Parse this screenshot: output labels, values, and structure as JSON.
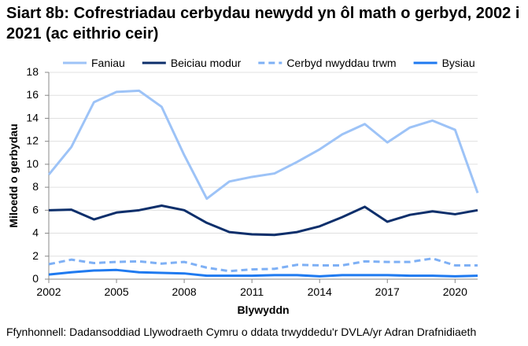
{
  "chart_data": {
    "type": "line",
    "title": "Siart 8b: Cofrestriadau cerbydau newydd yn ôl math o gerbyd, 2002 i 2021 (ac eithrio ceir)",
    "xlabel": "Blywyddn",
    "ylabel": "Miloedd o gerbydau",
    "source": "Ffynhonnell: Dadansoddiad Llywodraeth Cymru o ddata trwyddedu'r DVLA/yr Adran Drafnidiaeth",
    "ylim": [
      0,
      18
    ],
    "yticks": [
      0,
      2,
      4,
      6,
      8,
      10,
      12,
      14,
      16,
      18
    ],
    "xlim": [
      2002,
      2021
    ],
    "xticks": [
      2002,
      2005,
      2008,
      2011,
      2014,
      2017,
      2020
    ],
    "x": [
      2002,
      2003,
      2004,
      2005,
      2006,
      2007,
      2008,
      2009,
      2010,
      2011,
      2012,
      2013,
      2014,
      2015,
      2016,
      2017,
      2018,
      2019,
      2020,
      2021
    ],
    "grid": true,
    "legend": "top",
    "series": [
      {
        "name": "Faniau",
        "color": "#9dc3f7",
        "dash": false,
        "values": [
          9.1,
          11.5,
          15.4,
          16.3,
          16.4,
          15.0,
          10.8,
          7.0,
          8.5,
          8.9,
          9.2,
          10.2,
          11.3,
          12.6,
          13.5,
          11.9,
          13.2,
          13.8,
          13.0,
          7.5
        ]
      },
      {
        "name": "Beiciau modur",
        "color": "#0d2f6b",
        "dash": false,
        "values": [
          6.0,
          6.05,
          5.2,
          5.8,
          6.0,
          6.4,
          6.0,
          4.9,
          4.1,
          3.9,
          3.85,
          4.1,
          4.6,
          5.4,
          6.3,
          5.0,
          5.6,
          5.9,
          5.65,
          6.0
        ]
      },
      {
        "name": "Cerbyd nwyddau trwm",
        "color": "#7eb0f5",
        "dash": true,
        "values": [
          1.3,
          1.7,
          1.4,
          1.5,
          1.55,
          1.35,
          1.5,
          1.0,
          0.7,
          0.85,
          0.9,
          1.25,
          1.2,
          1.2,
          1.55,
          1.5,
          1.5,
          1.8,
          1.2,
          1.2
        ]
      },
      {
        "name": "Bysiau",
        "color": "#1f7af0",
        "dash": false,
        "values": [
          0.4,
          0.6,
          0.75,
          0.8,
          0.6,
          0.55,
          0.5,
          0.3,
          0.3,
          0.3,
          0.35,
          0.35,
          0.25,
          0.35,
          0.35,
          0.35,
          0.3,
          0.3,
          0.25,
          0.3
        ]
      }
    ]
  }
}
